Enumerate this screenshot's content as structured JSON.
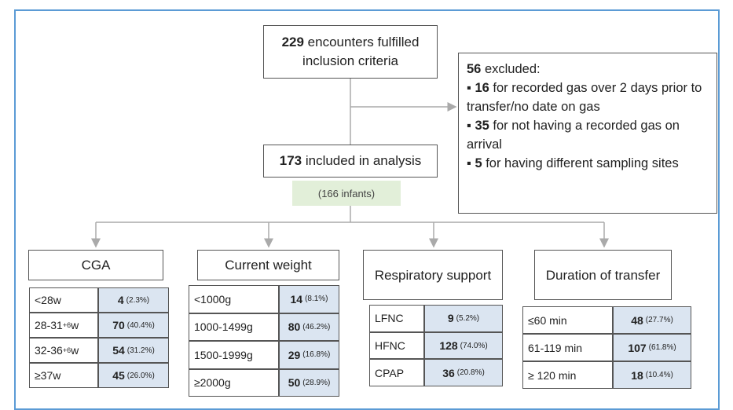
{
  "top": {
    "count": "229",
    "text": "encounters fulfilled inclusion criteria"
  },
  "excluded": {
    "count": "56",
    "label": "excluded:",
    "items": [
      {
        "count": "16",
        "text": "for recorded gas over 2 days prior to transfer/no date on gas"
      },
      {
        "count": "35",
        "text": "for not having a recorded gas on arrival"
      },
      {
        "count": "5",
        "text": "for having different sampling sites"
      }
    ]
  },
  "included": {
    "count": "173",
    "text": "included in analysis"
  },
  "infants": "(166 infants)",
  "groups": [
    {
      "title": "CGA",
      "rows": [
        {
          "label": "<28w",
          "n": "4",
          "pct": "(2.3%)"
        },
        {
          "label": "28-31",
          "sup": "+6",
          "suffix": "w",
          "n": "70",
          "pct": "(40.4%)"
        },
        {
          "label": "32-36",
          "sup": "+6",
          "suffix": "w",
          "n": "54",
          "pct": "(31.2%)"
        },
        {
          "label": "≥37w",
          "n": "45",
          "pct": "(26.0%)"
        }
      ]
    },
    {
      "title": "Current weight",
      "rows": [
        {
          "label": "<1000g",
          "n": "14",
          "pct": "(8.1%)"
        },
        {
          "label": "1000-1499g",
          "n": "80",
          "pct": "(46.2%)"
        },
        {
          "label": "1500-1999g",
          "n": "29",
          "pct": "(16.8%)"
        },
        {
          "label": "≥2000g",
          "n": "50",
          "pct": "(28.9%)"
        }
      ]
    },
    {
      "title": "Respiratory support",
      "rows": [
        {
          "label": "LFNC",
          "n": "9",
          "pct": "(5.2%)"
        },
        {
          "label": "HFNC",
          "n": "128",
          "pct": "(74.0%)"
        },
        {
          "label": "CPAP",
          "n": "36",
          "pct": "(20.8%)"
        }
      ]
    },
    {
      "title": "Duration of transfer",
      "rows": [
        {
          "label": "≤60 min",
          "n": "48",
          "pct": "(27.7%)"
        },
        {
          "label": "61-119 min",
          "n": "107",
          "pct": "(61.8%)"
        },
        {
          "label": "≥ 120 min",
          "n": "18",
          "pct": "(10.4%)"
        }
      ]
    }
  ]
}
